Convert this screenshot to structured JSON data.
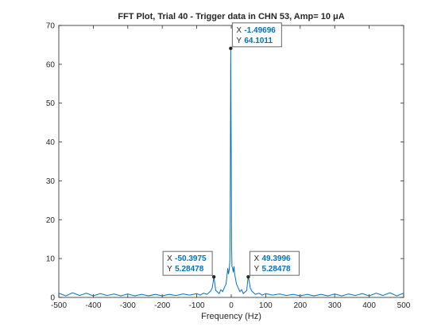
{
  "chart_data": {
    "type": "line",
    "title": "FFT Plot, Trial 40 - Trigger data in CHN 53, Amp= 10 μA",
    "xlabel": "Frequency (Hz)",
    "ylabel": "",
    "xlim": [
      -500,
      500
    ],
    "ylim": [
      0,
      70
    ],
    "xticks": [
      -500,
      -400,
      -300,
      -200,
      -100,
      0,
      100,
      200,
      300,
      400,
      500
    ],
    "yticks": [
      0,
      10,
      20,
      30,
      40,
      50,
      60,
      70
    ],
    "grid": false,
    "line_color": "#0072bd",
    "tip_value_color": "#0072bd",
    "series": [
      {
        "points": [
          [
            -500,
            1.1
          ],
          [
            -480,
            0.4
          ],
          [
            -460,
            1.2
          ],
          [
            -440,
            0.5
          ],
          [
            -420,
            1.1
          ],
          [
            -400,
            0.4
          ],
          [
            -380,
            1.0
          ],
          [
            -360,
            0.5
          ],
          [
            -340,
            0.9
          ],
          [
            -320,
            0.4
          ],
          [
            -300,
            0.9
          ],
          [
            -280,
            0.4
          ],
          [
            -260,
            0.8
          ],
          [
            -240,
            0.4
          ],
          [
            -220,
            0.8
          ],
          [
            -200,
            0.4
          ],
          [
            -180,
            0.8
          ],
          [
            -160,
            0.5
          ],
          [
            -140,
            0.9
          ],
          [
            -120,
            0.6
          ],
          [
            -100,
            1.0
          ],
          [
            -90,
            0.6
          ],
          [
            -80,
            1.1
          ],
          [
            -70,
            0.8
          ],
          [
            -60,
            1.6
          ],
          [
            -55,
            2.5
          ],
          [
            -52,
            4.2
          ],
          [
            -50.3975,
            5.28478
          ],
          [
            -48,
            3.8
          ],
          [
            -45,
            1.8
          ],
          [
            -40,
            1.4
          ],
          [
            -35,
            1.0
          ],
          [
            -30,
            2.0
          ],
          [
            -25,
            1.5
          ],
          [
            -20,
            2.5
          ],
          [
            -15,
            3.5
          ],
          [
            -10,
            7.5
          ],
          [
            -8,
            6.0
          ],
          [
            -6,
            7.0
          ],
          [
            -4,
            9.5
          ],
          [
            -3,
            20.0
          ],
          [
            -1.49696,
            64.1011
          ],
          [
            0,
            36.0
          ],
          [
            1,
            14.0
          ],
          [
            2,
            8.0
          ],
          [
            4,
            7.5
          ],
          [
            6,
            6.5
          ],
          [
            8,
            8.0
          ],
          [
            10,
            6.0
          ],
          [
            15,
            3.5
          ],
          [
            20,
            2.5
          ],
          [
            25,
            1.5
          ],
          [
            30,
            2.0
          ],
          [
            35,
            1.0
          ],
          [
            40,
            1.4
          ],
          [
            45,
            1.8
          ],
          [
            47,
            3.8
          ],
          [
            49.3996,
            5.28478
          ],
          [
            52,
            4.2
          ],
          [
            55,
            2.5
          ],
          [
            60,
            1.6
          ],
          [
            70,
            0.8
          ],
          [
            80,
            1.1
          ],
          [
            90,
            0.6
          ],
          [
            100,
            1.0
          ],
          [
            120,
            0.6
          ],
          [
            140,
            0.9
          ],
          [
            160,
            0.5
          ],
          [
            180,
            0.8
          ],
          [
            200,
            0.4
          ],
          [
            220,
            0.8
          ],
          [
            240,
            0.4
          ],
          [
            260,
            0.8
          ],
          [
            280,
            0.4
          ],
          [
            300,
            0.9
          ],
          [
            320,
            0.4
          ],
          [
            340,
            0.9
          ],
          [
            360,
            0.5
          ],
          [
            380,
            1.0
          ],
          [
            400,
            0.4
          ],
          [
            420,
            1.1
          ],
          [
            440,
            0.5
          ],
          [
            460,
            1.2
          ],
          [
            480,
            0.4
          ],
          [
            500,
            1.1
          ]
        ]
      }
    ],
    "datatips": [
      {
        "x_label": "X",
        "x_value": "-1.49696",
        "y_label": "Y",
        "y_value": "64.1011",
        "x": -1.49696,
        "y": 64.1011,
        "side": "right"
      },
      {
        "x_label": "X",
        "x_value": "-50.3975",
        "y_label": "Y",
        "y_value": "5.28478",
        "x": -50.3975,
        "y": 5.28478,
        "side": "left"
      },
      {
        "x_label": "X",
        "x_value": "49.3996",
        "y_label": "Y",
        "y_value": "5.28478",
        "x": 49.3996,
        "y": 5.28478,
        "side": "right"
      }
    ]
  }
}
